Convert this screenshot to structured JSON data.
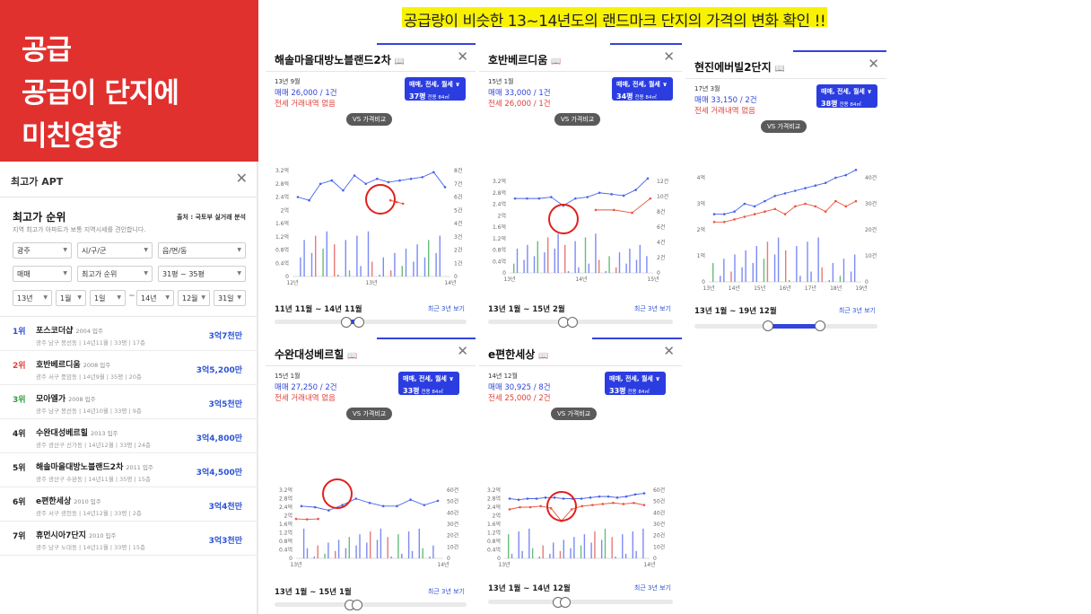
{
  "banner": {
    "line1": "공급",
    "line2": "공급이 단지에",
    "line3": "미친영향"
  },
  "top_note": "공급량이 비슷한 13~14년도의 랜드마크 단지의 가격의 변화 확인 !!",
  "apt_panel": {
    "title": "최고가 APT",
    "rank_title": "최고가 순위",
    "source": "출처 : 국토부 실거래 분석",
    "desc": "지역 최고가 아파트가 보통 지역시세를 견인합니다.",
    "filters": {
      "region": "광주",
      "city": "시/구/군",
      "town": "읍/면/동",
      "deal_type": "매매",
      "order": "최고가 순위",
      "size": "31평 ~ 35평",
      "from_year": "13년",
      "from_month": "1월",
      "from_day": "1일",
      "dash": "~",
      "to_year": "14년",
      "to_month": "12월",
      "to_day": "31일"
    },
    "items": [
      {
        "rank": "1위",
        "name": "포스코더샵",
        "year": "2004 입주",
        "sub": "광주 남구 봉선동 | 14년11월 | 33평 | 17층",
        "price": "3억7천만",
        "rank_color": "#2b52d6"
      },
      {
        "rank": "2위",
        "name": "호반베르디움",
        "year": "2008 입주",
        "sub": "광주 서구 풍암동 | 14년9월 | 35평 | 20층",
        "price": "3억5,200만",
        "rank_color": "#e0403a"
      },
      {
        "rank": "3위",
        "name": "모아엘가",
        "year": "2008 입주",
        "sub": "광주 남구 봉선동 | 14년10월 | 33평 | 9층",
        "price": "3억5천만",
        "rank_color": "#2e9e3c"
      },
      {
        "rank": "4위",
        "name": "수완대성베르힐",
        "year": "2013 입주",
        "sub": "광주 광산구 신가동 | 14년12월 | 33평 | 24층",
        "price": "3억4,800만",
        "rank_color": "#222222"
      },
      {
        "rank": "5위",
        "name": "해솔마을대방노블랜드2차",
        "year": "2011 입주",
        "sub": "광주 광산구 수완동 | 14년11월 | 35평 | 15층",
        "price": "3억4,500만",
        "rank_color": "#222222"
      },
      {
        "rank": "6위",
        "name": "e편한세상",
        "year": "2010 입주",
        "sub": "광주 서구 광천동 | 14년12월 | 33평 | 2층",
        "price": "3억4천만",
        "rank_color": "#222222"
      },
      {
        "rank": "7위",
        "name": "휴먼시아7단지",
        "year": "2010 입주",
        "sub": "광주 남구 노대동 | 14년11월 | 33평 | 15층",
        "price": "3억3천만",
        "rank_color": "#222222"
      }
    ]
  },
  "common": {
    "buy_btn": "매매, 전세, 월세 ∨",
    "vs": "VS 가격비교",
    "recent": "최근 3년 보기",
    "unit": "전용 84㎡"
  },
  "cards": [
    {
      "name": "해솔마을대방노블랜드2차",
      "date": "13년 9월",
      "sale": "매매 26,000 / 1건",
      "rent": "전세 거래내역 없음",
      "pyeong": "37평",
      "period": "11년 11월 ~ 14년 11월"
    },
    {
      "name": "호반베르디움",
      "date": "15년 1월",
      "sale": "매매 33,000 / 1건",
      "rent": "전세 26,000 / 1건",
      "pyeong": "34평",
      "period": "13년 1월 ~ 15년 2월"
    },
    {
      "name": "현진에버빌2단지",
      "date": "17년 3월",
      "sale": "매매 33,150 / 2건",
      "rent": "전세 거래내역 없음",
      "pyeong": "38평",
      "period": "13년 1월 ~ 19년 12월"
    },
    {
      "name": "수완대성베르힐",
      "date": "15년 1월",
      "sale": "매매 27,250 / 2건",
      "rent": "전세 거래내역 없음",
      "pyeong": "33평",
      "period": "13년 1월 ~ 15년 1월"
    },
    {
      "name": "e편한세상",
      "date": "14년 12월",
      "sale": "매매 30,925 / 8건",
      "rent": "전세 25,000 / 2건",
      "pyeong": "33평",
      "period": "13년 1월 ~ 14년 12월"
    }
  ],
  "charts": [
    {
      "y_ticks": [
        "3.2억",
        "2.8억",
        "2.4억",
        "2억",
        "1.6억",
        "1.2억",
        "0.8억",
        "0.4억",
        "0"
      ],
      "y2_ticks": [
        "8건",
        "7건",
        "6건",
        "5건",
        "4건",
        "3건",
        "2건",
        "1건",
        "0"
      ],
      "x_ticks": [
        "12년",
        "13년",
        "14년"
      ],
      "sale_line": [
        2.4,
        2.3,
        2.8,
        2.9,
        2.6,
        3.05,
        2.8,
        2.95,
        2.85,
        2.9,
        2.95,
        3.0,
        3.15,
        2.7
      ],
      "rent_line": [
        2.3,
        2.25,
        2.2
      ]
    },
    {
      "y_ticks": [
        "3.2억",
        "2.8억",
        "2.4억",
        "2억",
        "1.6억",
        "1.2억",
        "0.8억",
        "0.4억",
        "0"
      ],
      "y2_ticks": [
        "12건",
        "10건",
        "8건",
        "6건",
        "4건",
        "2건",
        "0"
      ],
      "x_ticks": [
        "13년",
        "14년",
        "15년"
      ],
      "sale_line": [
        2.6,
        2.6,
        2.6,
        2.65,
        2.35,
        2.6,
        2.65,
        2.8,
        2.75,
        2.7,
        2.9,
        3.3
      ],
      "rent_line": [
        2.2,
        2.2,
        2.1,
        2.6
      ]
    },
    {
      "y_ticks": [
        "4억",
        "3억",
        "2억",
        "1억",
        "0"
      ],
      "y2_ticks": [
        "40건",
        "30건",
        "20건",
        "10건",
        "0"
      ],
      "x_ticks": [
        "13년",
        "14년",
        "15년",
        "16년",
        "17년",
        "18년",
        "19년"
      ],
      "sale_line": [
        2.6,
        2.6,
        2.7,
        3.0,
        2.9,
        3.1,
        3.3,
        3.4,
        3.5,
        3.6,
        3.7,
        3.8,
        4.0,
        4.1,
        4.3
      ],
      "rent_line": [
        2.3,
        2.3,
        2.4,
        2.5,
        2.6,
        2.7,
        2.8,
        2.6,
        2.9,
        3.0,
        2.9,
        2.7,
        3.1,
        2.9,
        3.1
      ]
    },
    {
      "y_ticks": [
        "3.2억",
        "2.8억",
        "2.4억",
        "2억",
        "1.6억",
        "1.2억",
        "0.8억",
        "0.4억",
        "0"
      ],
      "y2_ticks": [
        "60건",
        "50건",
        "40건",
        "30건",
        "20건",
        "10건",
        "0"
      ],
      "x_ticks": [
        "13년",
        "14년"
      ],
      "sale_line": [
        2.45,
        2.4,
        2.25,
        2.5,
        2.8,
        2.6,
        2.45,
        2.45,
        2.75,
        2.5,
        2.7
      ],
      "rent_line": [
        1.85,
        1.83,
        1.85
      ]
    },
    {
      "y_ticks": [
        "3.2억",
        "2.8억",
        "2.4억",
        "2억",
        "1.6억",
        "1.2억",
        "0.8억",
        "0.4억",
        "0"
      ],
      "y2_ticks": [
        "60건",
        "50건",
        "40건",
        "30건",
        "20건",
        "10건",
        "0"
      ],
      "x_ticks": [
        "13년",
        "14년"
      ],
      "sale_line": [
        2.8,
        2.75,
        2.8,
        2.8,
        2.85,
        2.85,
        2.8,
        2.8,
        2.8,
        2.85,
        2.9,
        2.9,
        2.85,
        2.9,
        3.0,
        3.05
      ],
      "rent_line": [
        2.3,
        2.4,
        2.4,
        2.45,
        2.35,
        1.75,
        2.3,
        2.45,
        2.5,
        2.55,
        2.6,
        2.55,
        2.6,
        2.5
      ]
    }
  ]
}
